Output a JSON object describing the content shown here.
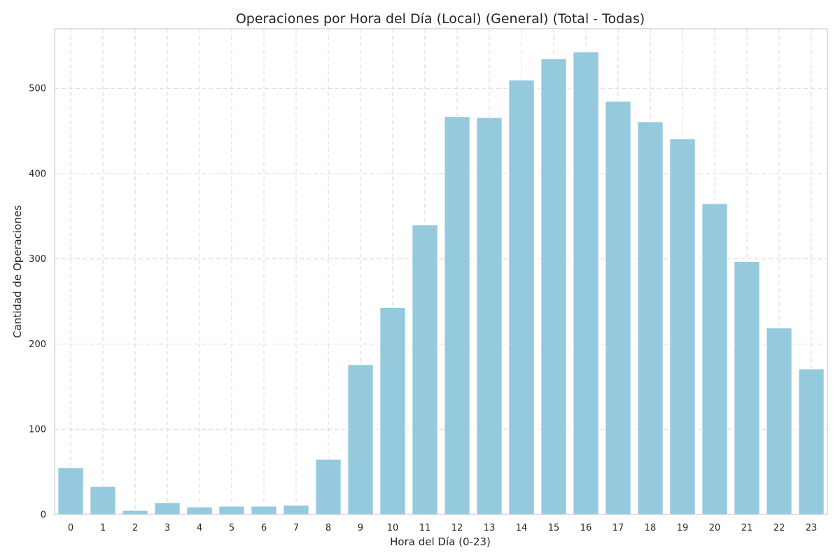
{
  "chart_data": {
    "type": "bar",
    "title": "Operaciones por Hora del Día (Local) (General) (Total - Todas)",
    "xlabel": "Hora del Día (0-23)",
    "ylabel": "Cantidad de Operaciones",
    "categories": [
      "0",
      "1",
      "2",
      "3",
      "4",
      "5",
      "6",
      "7",
      "8",
      "9",
      "10",
      "11",
      "12",
      "13",
      "14",
      "15",
      "16",
      "17",
      "18",
      "19",
      "20",
      "21",
      "22",
      "23"
    ],
    "values": [
      55,
      33,
      5,
      14,
      9,
      10,
      10,
      11,
      65,
      176,
      243,
      340,
      467,
      466,
      510,
      535,
      543,
      485,
      461,
      441,
      365,
      297,
      219,
      171
    ],
    "ylim": [
      0,
      570
    ],
    "yticks": [
      0,
      100,
      200,
      300,
      400,
      500
    ],
    "grid": true,
    "grid_style": "dashed",
    "legend": "none",
    "colors": {
      "bar": "#94c9de",
      "grid": "#d9d9d9",
      "text": "#262626"
    }
  }
}
